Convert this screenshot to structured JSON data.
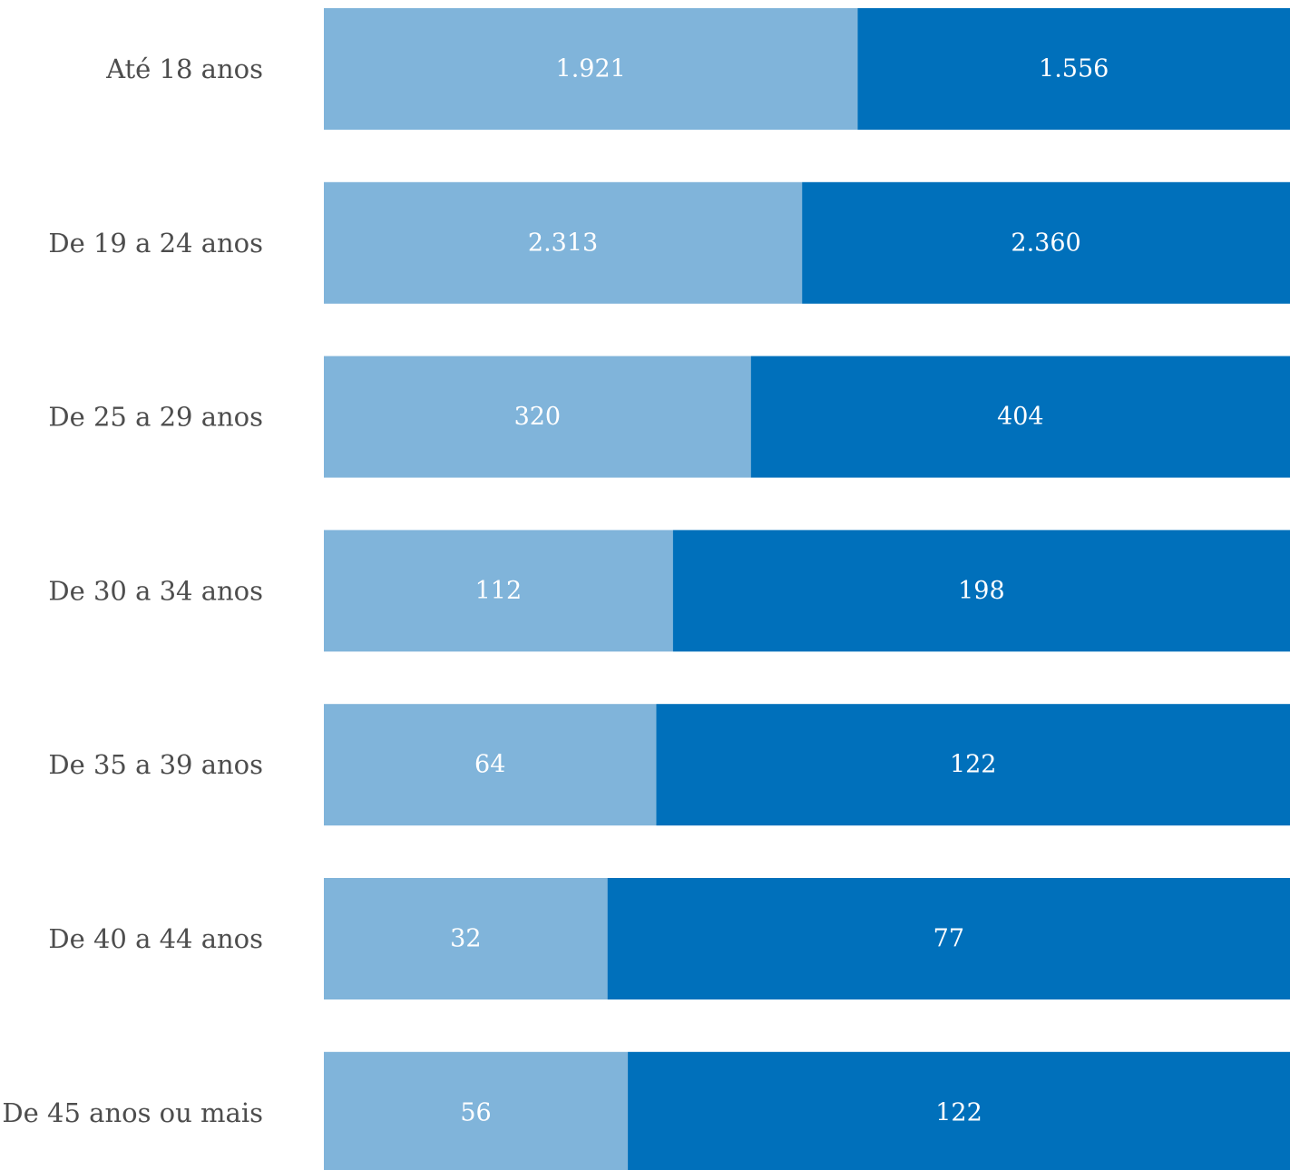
{
  "chart_data": {
    "type": "bar",
    "orientation": "horizontal",
    "stacking": "percent",
    "categories": [
      "Até 18 anos",
      "De 19 a 24 anos",
      "De 25 a 29 anos",
      "De 30 a 34 anos",
      "De 35 a 39 anos",
      "De 40 a 44 anos",
      "De 45 anos ou mais"
    ],
    "series": [
      {
        "color": "#80b4da",
        "values": [
          1921,
          2313,
          320,
          112,
          64,
          32,
          56
        ],
        "labels": [
          "1.921",
          "2.313",
          "320",
          "112",
          "64",
          "32",
          "56"
        ]
      },
      {
        "color": "#0070bb",
        "values": [
          1556,
          2360,
          404,
          198,
          122,
          77,
          122
        ],
        "labels": [
          "1.556",
          "2.360",
          "404",
          "198",
          "122",
          "77",
          "122"
        ]
      }
    ],
    "legend": "none",
    "grid": false
  }
}
